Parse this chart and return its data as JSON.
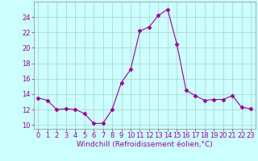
{
  "x": [
    0,
    1,
    2,
    3,
    4,
    5,
    6,
    7,
    8,
    9,
    10,
    11,
    12,
    13,
    14,
    15,
    16,
    17,
    18,
    19,
    20,
    21,
    22,
    23
  ],
  "y": [
    13.5,
    13.2,
    12.0,
    12.1,
    12.0,
    11.5,
    10.2,
    10.2,
    12.0,
    15.5,
    17.2,
    22.2,
    22.7,
    24.2,
    25.0,
    20.5,
    14.5,
    13.8,
    13.2,
    13.3,
    13.3,
    13.8,
    12.3,
    12.1
  ],
  "line_color": "#990099",
  "marker": "D",
  "marker_size": 2.5,
  "bg_color": "#ccffff",
  "grid_color": "#aacccc",
  "xlabel": "Windchill (Refroidissement éolien,°C)",
  "xlabel_color": "#990099",
  "xlabel_fontsize": 6.5,
  "tick_color": "#990099",
  "tick_fontsize": 6.0,
  "ylim": [
    9.5,
    26
  ],
  "yticks": [
    10,
    12,
    14,
    16,
    18,
    20,
    22,
    24
  ],
  "xlim": [
    -0.5,
    23.5
  ],
  "xticks": [
    0,
    1,
    2,
    3,
    4,
    5,
    6,
    7,
    8,
    9,
    10,
    11,
    12,
    13,
    14,
    15,
    16,
    17,
    18,
    19,
    20,
    21,
    22,
    23
  ]
}
